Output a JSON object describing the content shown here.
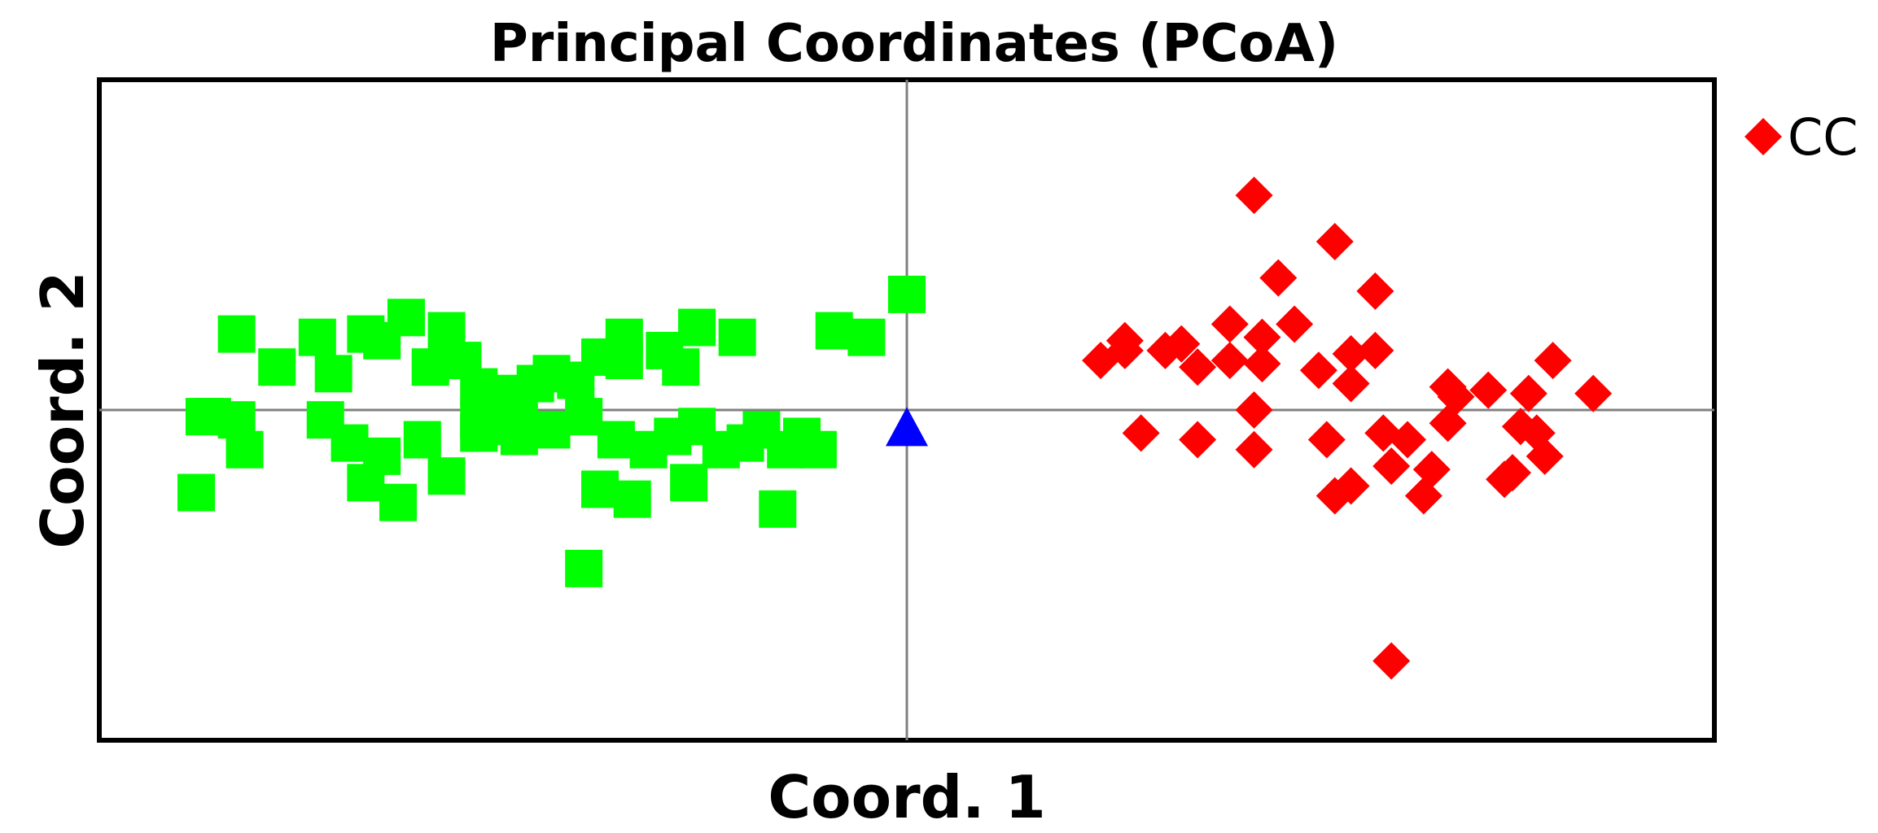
{
  "chart_data": {
    "type": "scatter",
    "title": "Principal Coordinates (PCoA)",
    "xlabel": "Coord. 1",
    "ylabel": "Coord. 2",
    "xlim": [
      -1,
      1
    ],
    "ylim": [
      -1,
      1
    ],
    "grid": false,
    "zero_lines": true,
    "legend_position": "top-right",
    "series": [
      {
        "marker": "square",
        "color": "#00ff00",
        "x": [
          -0.83,
          -0.78,
          -0.71,
          -0.73,
          -0.67,
          -0.65,
          -0.62,
          -0.57,
          -0.55,
          -0.59,
          -0.53,
          -0.5,
          -0.53,
          -0.48,
          -0.46,
          -0.44,
          -0.41,
          -0.38,
          -0.35,
          -0.3,
          -0.28,
          -0.35,
          -0.26,
          -0.21,
          -0.09,
          -0.05,
          0.0,
          -0.87,
          -0.83,
          -0.86,
          -0.82,
          -0.72,
          -0.69,
          -0.65,
          -0.6,
          -0.57,
          -0.53,
          -0.51,
          -0.48,
          -0.44,
          -0.4,
          -0.36,
          -0.32,
          -0.29,
          -0.26,
          -0.23,
          -0.2,
          -0.18,
          -0.15,
          -0.13,
          -0.11,
          -0.88,
          -0.67,
          -0.63,
          -0.38,
          -0.34,
          -0.27,
          -0.16,
          -0.4
        ],
        "y": [
          0.23,
          0.13,
          0.11,
          0.22,
          0.23,
          0.21,
          0.28,
          0.24,
          0.15,
          0.13,
          0.07,
          0.05,
          -0.03,
          0.01,
          0.08,
          0.11,
          0.09,
          0.16,
          0.15,
          0.18,
          0.13,
          0.22,
          0.25,
          0.22,
          0.24,
          0.22,
          0.35,
          -0.02,
          -0.03,
          -0.02,
          -0.12,
          -0.03,
          -0.1,
          -0.14,
          -0.09,
          -0.2,
          -0.07,
          -0.05,
          -0.08,
          -0.06,
          -0.02,
          -0.09,
          -0.12,
          -0.08,
          -0.05,
          -0.12,
          -0.1,
          -0.06,
          -0.12,
          -0.08,
          -0.12,
          -0.25,
          -0.22,
          -0.28,
          -0.24,
          -0.27,
          -0.22,
          -0.3,
          -0.48
        ]
      },
      {
        "name": "CC",
        "marker": "diamond",
        "color": "#ff0000",
        "x": [
          0.43,
          0.53,
          0.46,
          0.58,
          0.27,
          0.32,
          0.34,
          0.4,
          0.44,
          0.48,
          0.55,
          0.58,
          0.67,
          0.8,
          0.27,
          0.36,
          0.4,
          0.44,
          0.51,
          0.55,
          0.68,
          0.72,
          0.77,
          0.85,
          0.24,
          0.29,
          0.36,
          0.43,
          0.43,
          0.52,
          0.59,
          0.62,
          0.67,
          0.76,
          0.78,
          0.6,
          0.65,
          0.75,
          0.79,
          0.55,
          0.53,
          0.64,
          0.74,
          0.6
        ],
        "y": [
          0.65,
          0.51,
          0.4,
          0.36,
          0.21,
          0.18,
          0.2,
          0.26,
          0.22,
          0.26,
          0.17,
          0.18,
          0.07,
          0.15,
          0.18,
          0.13,
          0.15,
          0.14,
          0.12,
          0.08,
          0.04,
          0.06,
          0.05,
          0.05,
          0.15,
          -0.07,
          -0.09,
          0.0,
          -0.12,
          -0.09,
          -0.07,
          -0.09,
          -0.04,
          -0.05,
          -0.07,
          -0.17,
          -0.18,
          -0.19,
          -0.14,
          -0.23,
          -0.26,
          -0.26,
          -0.21,
          -0.76
        ]
      },
      {
        "marker": "triangle",
        "color": "#0000ff",
        "x": [
          0.0
        ],
        "y": [
          -0.06
        ]
      }
    ],
    "legend": [
      {
        "label": "CC",
        "marker": "diamond",
        "color": "#ff0000"
      }
    ]
  }
}
